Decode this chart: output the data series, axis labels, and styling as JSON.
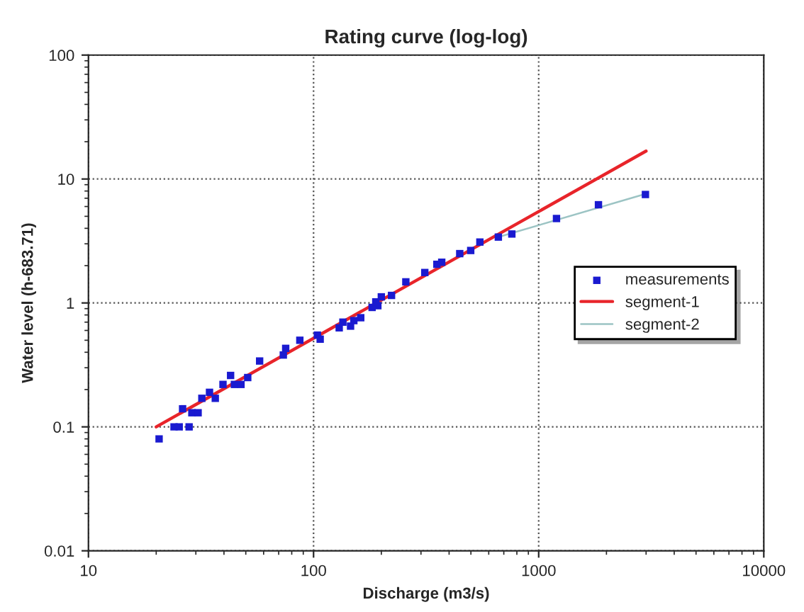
{
  "chart_data": {
    "type": "scatter",
    "title": "Rating curve (log-log)",
    "xlabel": "Discharge (m3/s)",
    "ylabel": "Water level (h-683.71)",
    "log": "xy",
    "xlim": [
      10,
      10000
    ],
    "ylim": [
      0.01,
      100
    ],
    "xticks": [
      10,
      100,
      1000,
      10000
    ],
    "yticks": [
      0.01,
      0.1,
      1,
      10,
      100
    ],
    "grid": true,
    "legend": "right",
    "series": [
      {
        "name": "measurements",
        "marker": "square",
        "color": "#1a1ad0",
        "x": [
          20.6,
          24,
          25.3,
          26.2,
          28,
          28.8,
          30.7,
          31.9,
          34.5,
          36.6,
          39.6,
          42.8,
          44.5,
          47.6,
          51,
          57.6,
          73.4,
          75.2,
          86.9,
          104,
          107,
          130,
          135,
          146,
          151,
          162,
          182,
          189,
          193,
          200,
          222,
          257,
          312,
          353,
          371,
          446,
          499,
          548,
          662,
          760,
          1200,
          1843,
          2980
        ],
        "values": [
          0.08,
          0.1,
          0.1,
          0.14,
          0.1,
          0.13,
          0.13,
          0.17,
          0.19,
          0.17,
          0.22,
          0.26,
          0.22,
          0.22,
          0.25,
          0.34,
          0.38,
          0.43,
          0.5,
          0.55,
          0.51,
          0.63,
          0.7,
          0.65,
          0.72,
          0.76,
          0.92,
          1.02,
          0.95,
          1.12,
          1.15,
          1.48,
          1.76,
          2.05,
          2.13,
          2.5,
          2.65,
          3.1,
          3.4,
          3.6,
          4.8,
          6.2,
          7.5
        ]
      },
      {
        "name": "segment-1",
        "type": "line",
        "marker": "none",
        "color": "#e8242a",
        "x": [
          20,
          3000
        ],
        "values": [
          0.1,
          16.8
        ]
      },
      {
        "name": "segment-2",
        "type": "line",
        "marker": "none",
        "color": "#9cc4c4",
        "x": [
          660,
          3000
        ],
        "values": [
          3.4,
          7.6
        ]
      }
    ]
  }
}
